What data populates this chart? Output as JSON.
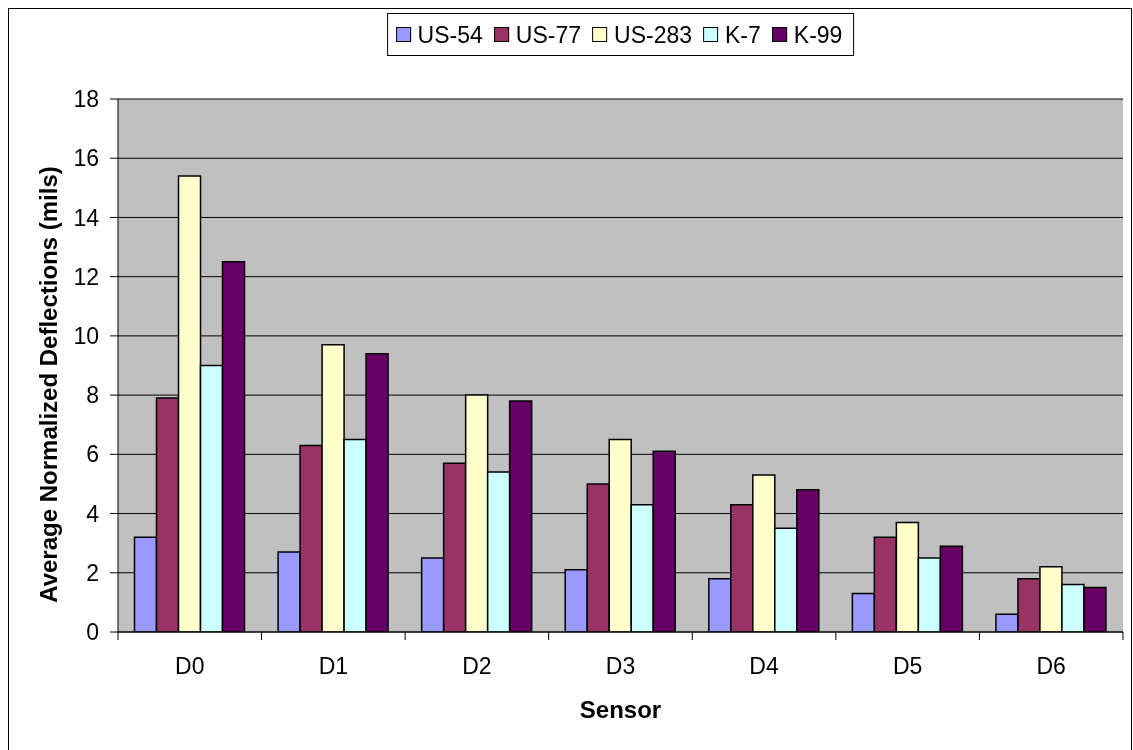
{
  "chart_data": {
    "type": "bar",
    "xlabel": "Sensor",
    "ylabel": "Average Normalized Deflections (mils)",
    "categories": [
      "D0",
      "D1",
      "D2",
      "D3",
      "D4",
      "D5",
      "D6"
    ],
    "series": [
      {
        "name": "US-54",
        "color": "#9999ff",
        "values": [
          3.2,
          2.7,
          2.5,
          2.1,
          1.8,
          1.3,
          0.6
        ]
      },
      {
        "name": "US-77",
        "color": "#993366",
        "values": [
          7.9,
          6.3,
          5.7,
          5.0,
          4.3,
          3.2,
          1.8
        ]
      },
      {
        "name": "US-283",
        "color": "#ffffcc",
        "values": [
          15.4,
          9.7,
          8.0,
          6.5,
          5.3,
          3.7,
          2.2
        ]
      },
      {
        "name": "K-7",
        "color": "#ccffff",
        "values": [
          9.0,
          6.5,
          5.4,
          4.3,
          3.5,
          2.5,
          1.6
        ]
      },
      {
        "name": "K-99",
        "color": "#660066",
        "values": [
          12.5,
          9.4,
          7.8,
          6.1,
          4.8,
          2.9,
          1.5
        ]
      }
    ],
    "ylim": [
      0,
      18
    ],
    "yticks": [
      0,
      2,
      4,
      6,
      8,
      10,
      12,
      14,
      16,
      18
    ],
    "grid": "y",
    "legend": "top"
  }
}
